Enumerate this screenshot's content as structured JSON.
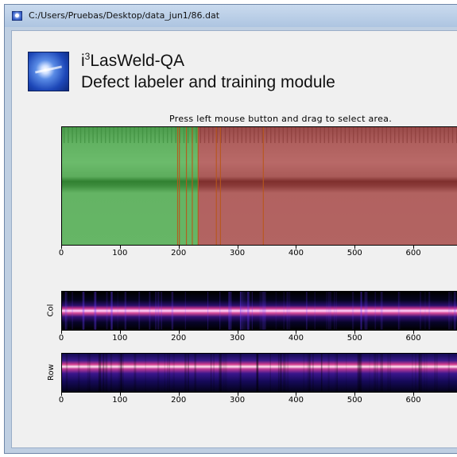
{
  "window": {
    "title": "C:/Users/Pruebas/Desktop/data_jun1/86.dat",
    "icon": "app-icon"
  },
  "header": {
    "logo": "star-burst-logo",
    "app_name_prefix": "i",
    "app_name_sup": "3",
    "app_name_suffix": "LasWeld-QA",
    "subtitle": "Defect labeler and training module"
  },
  "instruction": "Press left mouse button and drag to select area.",
  "colors": {
    "good_overlay": "#35c235",
    "defect_overlay": "#c12e2e",
    "marker_line": "#b8561a"
  },
  "chart_data": [
    {
      "type": "heatmap",
      "name": "weld-image",
      "x_ticks": [
        0,
        100,
        200,
        300,
        400,
        500,
        600
      ],
      "xlim": [
        0,
        683
      ],
      "regions": [
        {
          "label": "good",
          "x_start": 0,
          "x_end": 232
        },
        {
          "label": "defect",
          "x_start": 232,
          "x_end": 683
        }
      ],
      "marker_lines": [
        197,
        200,
        212,
        222,
        232,
        263,
        270,
        343
      ]
    },
    {
      "type": "heatmap",
      "name": "col-profile",
      "ylabel": "Col",
      "x_ticks": [
        0,
        100,
        200,
        300,
        400,
        500,
        600
      ],
      "xlim": [
        0,
        683
      ]
    },
    {
      "type": "heatmap",
      "name": "row-profile",
      "ylabel": "Row",
      "x_ticks": [
        0,
        100,
        200,
        300,
        400,
        500,
        600
      ],
      "xlim": [
        0,
        683
      ]
    }
  ]
}
